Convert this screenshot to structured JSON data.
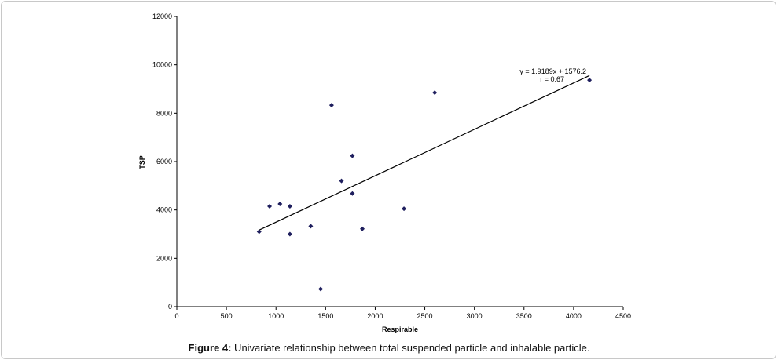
{
  "chart_data": {
    "type": "scatter",
    "xlabel": "Respirable",
    "ylabel": "TSP",
    "xlim": [
      0,
      4500
    ],
    "ylim": [
      0,
      12000
    ],
    "x_ticks": [
      0,
      500,
      1000,
      1500,
      2000,
      2500,
      3000,
      3500,
      4000,
      4500
    ],
    "y_ticks": [
      0,
      2000,
      4000,
      6000,
      8000,
      10000,
      12000
    ],
    "grid": false,
    "legend": "none",
    "marker": "diamond",
    "marker_color": "#1f1f5e",
    "points": [
      {
        "x": 830,
        "y": 3100
      },
      {
        "x": 935,
        "y": 4150
      },
      {
        "x": 1040,
        "y": 4250
      },
      {
        "x": 1140,
        "y": 4150
      },
      {
        "x": 1140,
        "y": 3000
      },
      {
        "x": 1350,
        "y": 3330
      },
      {
        "x": 1450,
        "y": 730
      },
      {
        "x": 1560,
        "y": 8330
      },
      {
        "x": 1660,
        "y": 5200
      },
      {
        "x": 1770,
        "y": 6240
      },
      {
        "x": 1770,
        "y": 4680
      },
      {
        "x": 1870,
        "y": 3220
      },
      {
        "x": 2290,
        "y": 4050
      },
      {
        "x": 2600,
        "y": 8850
      },
      {
        "x": 4160,
        "y": 9370
      }
    ],
    "trendline": {
      "slope": 1.9189,
      "intercept": 1576.2,
      "x_range": [
        830,
        4160
      ],
      "equation_label": "y = 1.9189x + 1576.2",
      "r_label": "r = 0.67"
    }
  },
  "caption": {
    "prefix": "Figure 4:",
    "text": " Univariate relationship between total suspended particle and inhalable particle."
  }
}
